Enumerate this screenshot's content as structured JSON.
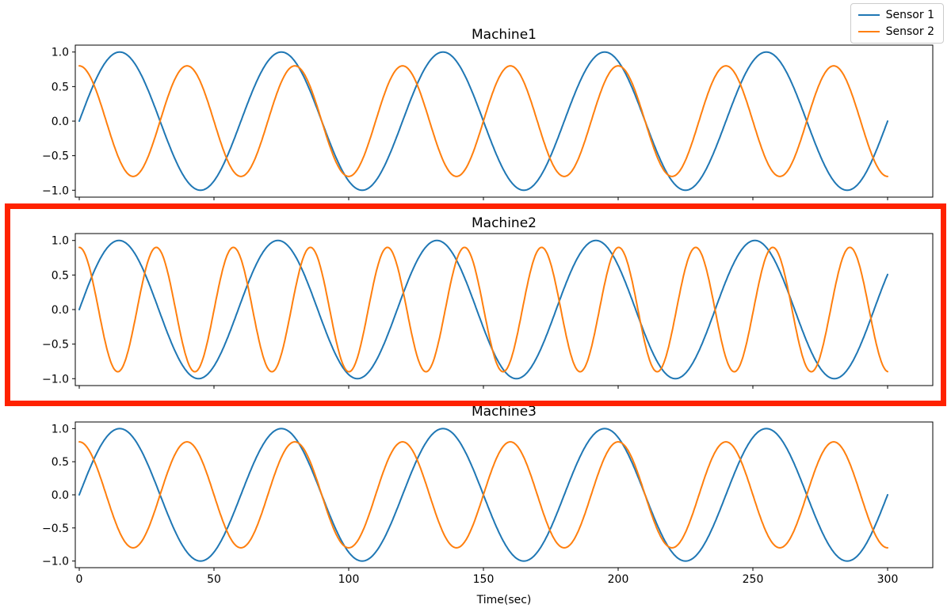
{
  "legend": {
    "position": "upper_right",
    "items": [
      {
        "label": "Sensor 1",
        "color": "#1f77b4"
      },
      {
        "label": "Sensor 2",
        "color": "#ff7f0e"
      }
    ]
  },
  "highlight": {
    "shape": "rectangle",
    "color": "#ff2200",
    "encloses": "Machine2"
  },
  "chart_data": [
    {
      "type": "line",
      "title": "Machine1",
      "xlabel": "",
      "x_range": [
        0,
        300
      ],
      "ylim": [
        -1.1,
        1.1
      ],
      "x_ticks": [
        0,
        50,
        100,
        150,
        200,
        250,
        300
      ],
      "x_tick_labels": [
        "0",
        "50",
        "100",
        "150",
        "200",
        "250",
        "300"
      ],
      "x_tick_labels_visible": false,
      "y_ticks": [
        1.0,
        0.5,
        0.0,
        -0.5,
        -1.0
      ],
      "y_tick_labels": [
        "1.0",
        "0.5",
        "0.0",
        "−0.5",
        "−1.0"
      ],
      "grid": false,
      "series": [
        {
          "name": "Sensor 1",
          "color": "#1f77b4",
          "waveform": "sin",
          "amplitude": 1.0,
          "period_sec": 60,
          "phase": 0
        },
        {
          "name": "Sensor 2",
          "color": "#ff7f0e",
          "waveform": "cos",
          "amplitude": 0.8,
          "period_sec": 40,
          "phase": 0
        }
      ]
    },
    {
      "type": "line",
      "title": "Machine2",
      "xlabel": "",
      "x_range": [
        0,
        300
      ],
      "ylim": [
        -1.1,
        1.1
      ],
      "x_ticks": [
        0,
        50,
        100,
        150,
        200,
        250,
        300
      ],
      "x_tick_labels": [
        "0",
        "50",
        "100",
        "150",
        "200",
        "250",
        "300"
      ],
      "x_tick_labels_visible": false,
      "y_ticks": [
        1.0,
        0.5,
        0.0,
        -0.5,
        -1.0
      ],
      "y_tick_labels": [
        "1.0",
        "0.5",
        "0.0",
        "−0.5",
        "−1.0"
      ],
      "grid": false,
      "highlighted": true,
      "series": [
        {
          "name": "Sensor 1",
          "color": "#1f77b4",
          "waveform": "sin",
          "amplitude": 1.0,
          "period_sec": 59,
          "phase": 0
        },
        {
          "name": "Sensor 2",
          "color": "#ff7f0e",
          "waveform": "cos",
          "amplitude": 0.9,
          "period_sec": 28.6,
          "phase": 0
        }
      ]
    },
    {
      "type": "line",
      "title": "Machine3",
      "xlabel": "Time(sec)",
      "x_range": [
        0,
        300
      ],
      "ylim": [
        -1.1,
        1.1
      ],
      "x_ticks": [
        0,
        50,
        100,
        150,
        200,
        250,
        300
      ],
      "x_tick_labels": [
        "0",
        "50",
        "100",
        "150",
        "200",
        "250",
        "300"
      ],
      "x_tick_labels_visible": true,
      "y_ticks": [
        1.0,
        0.5,
        0.0,
        -0.5,
        -1.0
      ],
      "y_tick_labels": [
        "1.0",
        "0.5",
        "0.0",
        "−0.5",
        "−1.0"
      ],
      "grid": false,
      "series": [
        {
          "name": "Sensor 1",
          "color": "#1f77b4",
          "waveform": "sin",
          "amplitude": 1.0,
          "period_sec": 60,
          "phase": 0
        },
        {
          "name": "Sensor 2",
          "color": "#ff7f0e",
          "waveform": "cos",
          "amplitude": 0.8,
          "period_sec": 40,
          "phase": 0
        }
      ]
    }
  ]
}
